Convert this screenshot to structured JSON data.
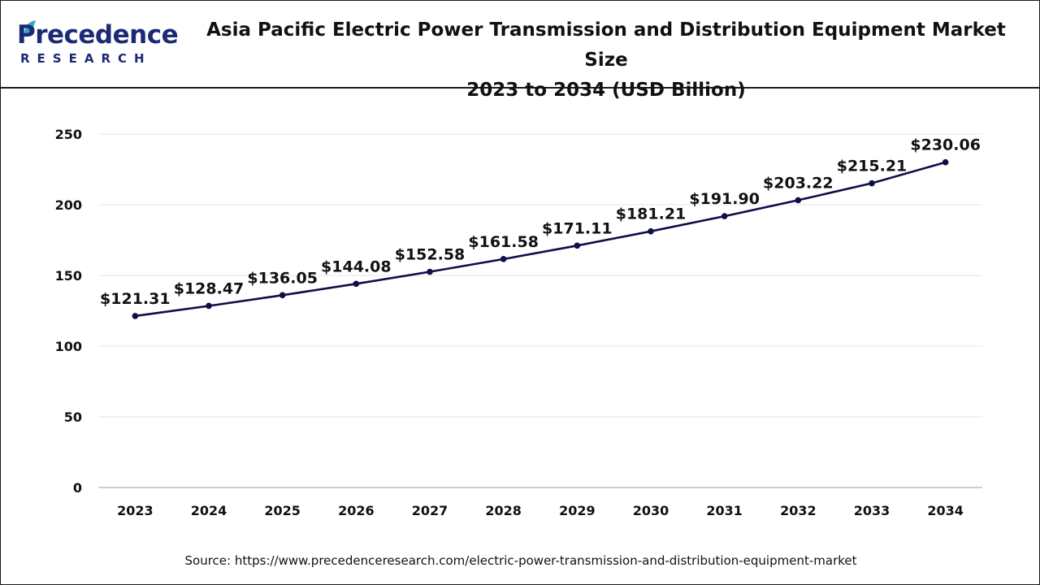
{
  "brand": {
    "name": "Precedence",
    "name_rest": "recedence",
    "initial": "P",
    "sub": "RESEARCH",
    "primary_color": "#1c2a74",
    "leaf_color": "#2fa9c9"
  },
  "header": {
    "title_line1": "Asia Pacific Electric Power Transmission and Distribution Equipment Market Size",
    "title_line2": "2023 to 2034 (USD Billion)"
  },
  "footer": {
    "source": "Source: https://www.precedenceresearch.com/electric-power-transmission-and-distribution-equipment-market"
  },
  "chart_data": {
    "type": "line",
    "title": "Asia Pacific Electric Power Transmission and Distribution Equipment Market Size 2023 to 2034 (USD Billion)",
    "categories": [
      "2023",
      "2024",
      "2025",
      "2026",
      "2027",
      "2028",
      "2029",
      "2030",
      "2031",
      "2032",
      "2033",
      "2034"
    ],
    "values": [
      121.31,
      128.47,
      136.05,
      144.08,
      152.58,
      161.58,
      171.11,
      181.21,
      191.9,
      203.22,
      215.21,
      230.06
    ],
    "labels": [
      "$121.31",
      "$128.47",
      "$136.05",
      "$144.08",
      "$152.58",
      "$161.58",
      "$171.11",
      "$181.21",
      "$191.90",
      "$203.22",
      "$215.21",
      "$230.06"
    ],
    "xlabel": "",
    "ylabel": "",
    "ylim": [
      0,
      250
    ],
    "yticks": [
      0,
      50,
      100,
      150,
      200,
      250
    ],
    "grid": true,
    "line_color": "#0e0e4a",
    "grid_color": "#e6e6e6"
  }
}
